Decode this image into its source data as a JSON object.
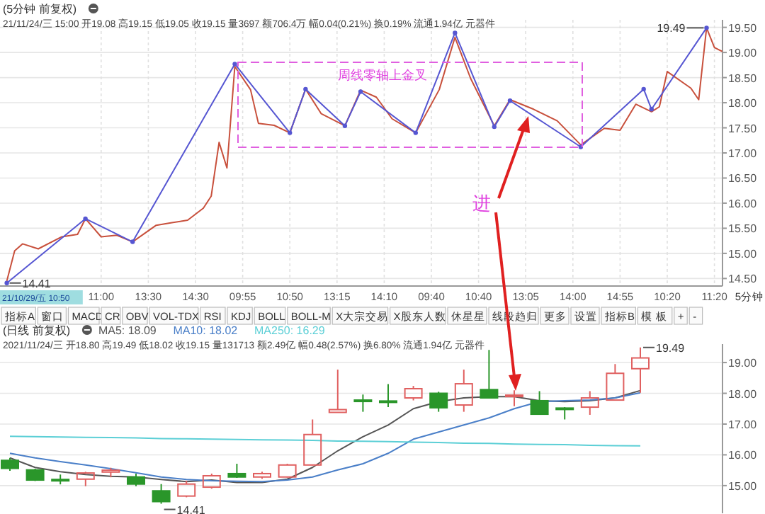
{
  "chart_data": [
    {
      "type": "line",
      "title": "(5分钟 前复权)",
      "subtitle": "21/11/24/三 15:00 开19.08 高19.15 低19.05 收19.15 量3697 额706.4万 幅0.04(0.21%) 换0.19% 流通1.94亿 元器件",
      "categories": [
        null,
        null,
        null,
        null,
        null,
        null,
        null,
        null,
        null,
        null,
        null,
        null,
        "11:00",
        null,
        null,
        null,
        null,
        null,
        "13:30",
        null,
        null,
        null,
        null,
        null,
        "14:30",
        null,
        null,
        null,
        null,
        null,
        "09:55",
        null,
        null,
        null,
        null,
        null,
        "10:50",
        null,
        null,
        null,
        null,
        null,
        "13:15",
        null,
        null,
        null,
        null,
        null,
        "14:10",
        null,
        null,
        null,
        null,
        null,
        "09:40",
        null,
        null,
        null,
        null,
        null,
        "10:40",
        null,
        null,
        null,
        null,
        null,
        "13:05",
        null,
        null,
        null,
        null,
        null,
        "14:00",
        null,
        null,
        null,
        null,
        null,
        "14:55",
        null,
        null,
        null,
        null,
        null,
        "10:20",
        null,
        null,
        null,
        null,
        null,
        "11:20",
        null
      ],
      "ylim": [
        14.35,
        19.65
      ],
      "yticks": [
        {
          "value": 14.5,
          "label": "14.50"
        },
        {
          "value": 15,
          "label": "15.00"
        },
        {
          "value": 15.5,
          "label": "15.50"
        },
        {
          "value": 16,
          "label": "16.00"
        },
        {
          "value": 16.5,
          "label": "16.50"
        },
        {
          "value": 17,
          "label": "17.00"
        },
        {
          "value": 17.5,
          "label": "17.50"
        },
        {
          "value": 18,
          "label": "18.00"
        },
        {
          "value": 18.5,
          "label": "18.50"
        },
        {
          "value": 19,
          "label": "19.00"
        },
        {
          "value": 19.5,
          "label": "19.50"
        }
      ],
      "grid": true,
      "series": [
        {
          "color": "#c8503c",
          "values": [
            14.45,
            15.05,
            15.19,
            null,
            15.09,
            null,
            null,
            15.33,
            null,
            15.38,
            15.69,
            null,
            15.33,
            null,
            15.36,
            null,
            15.23,
            null,
            null,
            15.56,
            null,
            15.61,
            null,
            15.66,
            null,
            15.9,
            16.14,
            17.21,
            16.7,
            18.72,
            null,
            18.26,
            17.59,
            null,
            17.55,
            null,
            17.4,
            null,
            18.27,
            null,
            17.78,
            null,
            null,
            17.54,
            null,
            18.25,
            null,
            18.11,
            null,
            17.68,
            null,
            null,
            17.4,
            null,
            null,
            18.26,
            null,
            19.3,
            null,
            18.48,
            null,
            null,
            17.54,
            null,
            18.06,
            null,
            null,
            17.87,
            null,
            null,
            17.64,
            null,
            null,
            17.16,
            null,
            null,
            17.49,
            null,
            17.45,
            null,
            17.97,
            null,
            17.82,
            17.92,
            18.62,
            null,
            null,
            18.29,
            18.06,
            19.49,
            19.1,
            19.02
          ]
        },
        {
          "color": "#5656d2",
          "marker": "circle",
          "values": [
            14.41,
            null,
            null,
            null,
            null,
            null,
            null,
            null,
            null,
            null,
            15.69,
            null,
            null,
            null,
            null,
            null,
            15.23,
            null,
            null,
            null,
            null,
            null,
            null,
            null,
            null,
            null,
            null,
            null,
            null,
            18.77,
            null,
            null,
            null,
            null,
            null,
            null,
            17.4,
            null,
            18.27,
            null,
            null,
            null,
            null,
            17.54,
            null,
            18.22,
            null,
            null,
            null,
            null,
            null,
            null,
            17.4,
            null,
            null,
            null,
            null,
            19.39,
            null,
            null,
            null,
            null,
            17.52,
            null,
            18.04,
            null,
            null,
            null,
            null,
            null,
            null,
            null,
            null,
            17.12,
            null,
            null,
            null,
            null,
            null,
            null,
            null,
            18.27,
            17.87,
            null,
            null,
            null,
            null,
            null,
            null,
            19.49,
            null,
            null
          ]
        }
      ],
      "annotations": [
        "14.41",
        "19.49",
        "周线零轴上金叉",
        "进",
        "21/10/29/五 10:50",
        "5分钟",
        "指标A",
        "窗口",
        "MACD",
        "CR",
        "OBV",
        "VOL-TDX",
        "RSI",
        "KDJ",
        "BOLL",
        "BOLL-M",
        "X大宗交易",
        "X股东人数",
        "休星星",
        "线段趋归",
        "更多",
        "设置",
        "指标B",
        "模 板",
        "+",
        "-"
      ]
    },
    {
      "type": "candlestick",
      "title": "(日线 前复权)",
      "subtitle": "2021/11/24/三 开18.80 高19.49 低18.02 收19.15 量131713 额2.49亿 幅0.48(2.57%) 换6.80% 流通1.94亿 元器件",
      "categories": [
        null,
        null,
        null,
        null,
        null,
        null,
        null,
        null,
        null,
        null,
        null,
        null,
        null,
        null,
        null,
        null,
        null,
        null,
        null,
        null,
        null,
        null,
        null,
        null,
        null,
        null
      ],
      "ylim": [
        14.1,
        19.6
      ],
      "yticks": [
        {
          "value": 15,
          "label": "15.00"
        },
        {
          "value": 16,
          "label": "16.00"
        },
        {
          "value": 17,
          "label": "17.00"
        },
        {
          "value": 18,
          "label": "18.00"
        },
        {
          "value": 19,
          "label": "19.00"
        }
      ],
      "grid": true,
      "legend": "top left",
      "series": [
        {
          "colors": [
            "#2a962a",
            "#2a962a",
            "#2a962a",
            "#e06060",
            "#e06060",
            "#2a962a",
            "#2a962a",
            "#e06060",
            "#e06060",
            "#2a962a",
            "#e06060",
            "#e06060",
            "#e06060",
            "#e06060",
            "#2a962a",
            "#2a962a",
            "#e06060",
            "#2a962a",
            "#e06060",
            "#2a962a",
            "#e06060",
            "#2a962a",
            "#2a962a",
            "#e06060",
            "#e06060",
            "#e06060"
          ],
          "ohlc": [
            [
              15.82,
              15.9,
              15.48,
              15.56
            ],
            [
              15.51,
              15.55,
              15.15,
              15.18
            ],
            [
              15.2,
              15.36,
              15.04,
              15.18
            ],
            [
              15.21,
              15.45,
              14.98,
              15.41
            ],
            [
              15.44,
              15.58,
              15.27,
              15.5
            ],
            [
              15.28,
              15.39,
              14.98,
              15.05
            ],
            [
              14.83,
              15.05,
              14.41,
              14.48
            ],
            [
              14.66,
              15.16,
              14.62,
              15.05
            ],
            [
              14.95,
              15.39,
              14.9,
              15.32
            ],
            [
              15.39,
              15.71,
              15.25,
              15.28
            ],
            [
              15.28,
              15.45,
              15.22,
              15.39
            ],
            [
              15.28,
              15.71,
              15.26,
              15.67
            ],
            [
              15.67,
              17.15,
              15.66,
              16.66
            ],
            [
              17.38,
              18.77,
              17.38,
              17.47
            ],
            [
              17.78,
              17.96,
              17.4,
              17.74
            ],
            [
              17.75,
              18.3,
              17.55,
              17.72
            ],
            [
              17.85,
              18.24,
              17.77,
              18.15
            ],
            [
              18.0,
              18.05,
              17.4,
              17.53
            ],
            [
              17.62,
              18.77,
              17.4,
              18.31
            ],
            [
              18.12,
              19.41,
              17.85,
              17.85
            ],
            [
              17.9,
              18.1,
              17.58,
              17.94
            ],
            [
              17.76,
              18.07,
              17.32,
              17.32
            ],
            [
              17.52,
              17.55,
              17.15,
              17.48
            ],
            [
              17.55,
              18.07,
              17.3,
              17.85
            ],
            [
              17.78,
              18.95,
              17.78,
              18.65
            ],
            [
              18.8,
              19.49,
              18.02,
              19.15
            ]
          ]
        },
        {
          "type": "line",
          "name": "MA5: 18.09",
          "color": "#555555",
          "values": [
            15.9,
            15.59,
            15.45,
            15.36,
            15.3,
            15.28,
            15.2,
            15.13,
            15.18,
            15.1,
            15.1,
            15.21,
            15.59,
            16.13,
            16.59,
            16.97,
            17.5,
            17.73,
            17.85,
            17.89,
            17.89,
            17.76,
            17.73,
            17.76,
            17.85,
            18.09
          ]
        },
        {
          "type": "line",
          "name": "MA10: 18.02",
          "color": "#4a7fc8",
          "values": [
            16.05,
            15.9,
            15.78,
            15.67,
            15.55,
            15.42,
            15.28,
            15.2,
            15.16,
            15.14,
            15.13,
            15.18,
            15.28,
            15.51,
            15.71,
            16.05,
            16.51,
            16.74,
            16.97,
            17.2,
            17.5,
            17.73,
            17.76,
            17.78,
            17.85,
            18.02
          ]
        },
        {
          "type": "line",
          "name": "MA250: 16.29",
          "color": "#5ccfd6",
          "values": [
            16.6,
            16.59,
            16.58,
            16.57,
            16.56,
            16.55,
            16.53,
            16.52,
            16.51,
            16.5,
            16.49,
            16.48,
            16.47,
            16.45,
            16.44,
            16.43,
            16.41,
            16.4,
            16.38,
            16.37,
            16.35,
            16.34,
            16.33,
            16.31,
            16.3,
            16.29
          ]
        }
      ],
      "annotations": [
        "14.41",
        "19.49"
      ]
    }
  ]
}
